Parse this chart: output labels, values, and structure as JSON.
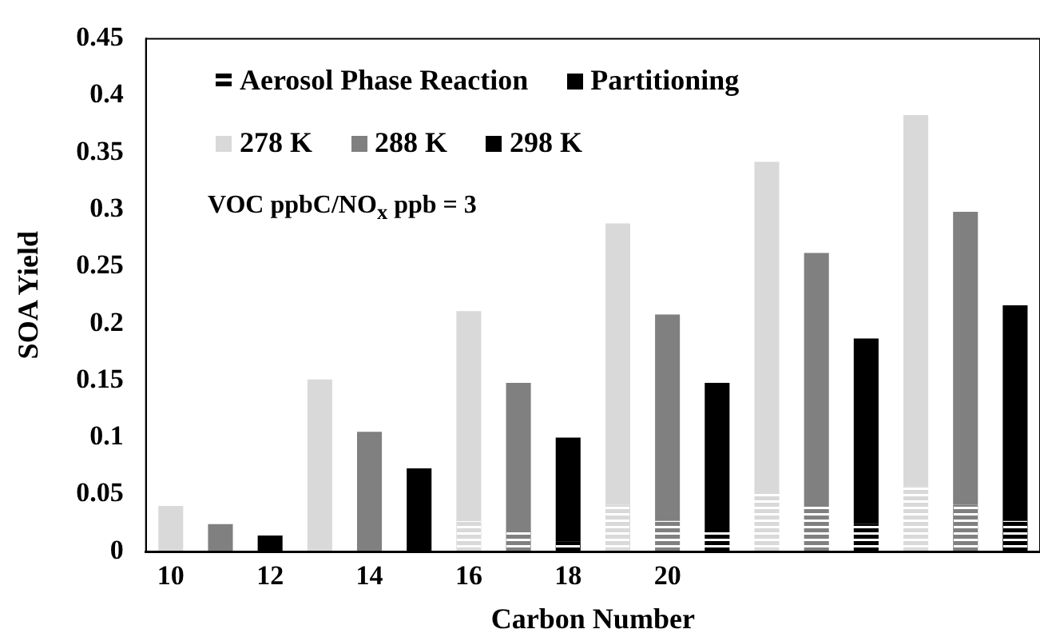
{
  "chart_data": {
    "type": "bar",
    "xlabel": "Carbon Number",
    "ylabel": "SOA Yield",
    "categories": [
      "10",
      null,
      "12",
      null,
      "14",
      null,
      "16",
      null,
      "18",
      null,
      "20",
      null,
      null,
      null,
      null,
      null,
      null,
      null
    ],
    "stacked": true,
    "legend": "top left",
    "ylim": [
      0,
      0.45
    ],
    "yticks": [
      0,
      0.05,
      0.1,
      0.15,
      0.2,
      0.25,
      0.3,
      0.35,
      0.4,
      0.45
    ],
    "annotations": [
      "VOC ppbC/NO$_{x}$ ppb = 3",
      "Aerosol Phase Reaction",
      "Partitioning"
    ],
    "series": [
      {
        "color": "#d9d9d9",
        "values": [
          0,
          null,
          null,
          0,
          null,
          null,
          0.026,
          null,
          null,
          0.041,
          null,
          null,
          0.05,
          null,
          null,
          0.057,
          null,
          null
        ]
      },
      {
        "color": "#808080",
        "values": [
          null,
          0,
          null,
          null,
          0,
          null,
          null,
          0.019,
          null,
          null,
          0.027,
          null,
          null,
          0.04,
          null,
          null,
          0.041,
          null
        ]
      },
      {
        "color": "#000000",
        "values": [
          null,
          null,
          0,
          null,
          null,
          0,
          null,
          null,
          0.009,
          null,
          null,
          0.019,
          null,
          null,
          0.024,
          null,
          null,
          0.027
        ]
      },
      {
        "name": "278 K",
        "color": "#d9d9d9",
        "values": [
          0.04,
          null,
          null,
          0.151,
          null,
          null,
          0.185,
          null,
          null,
          0.247,
          null,
          null,
          0.292,
          null,
          null,
          0.326,
          null,
          null
        ]
      },
      {
        "name": "288 K",
        "color": "#808080",
        "values": [
          null,
          0.024,
          null,
          null,
          0.105,
          null,
          null,
          0.129,
          null,
          null,
          0.181,
          null,
          null,
          0.222,
          null,
          null,
          0.257,
          null
        ]
      },
      {
        "name": "298 K",
        "color": "#000000",
        "values": [
          null,
          null,
          0.014,
          null,
          null,
          0.073,
          null,
          null,
          0.091,
          null,
          null,
          0.129,
          null,
          null,
          0.163,
          null,
          null,
          0.189
        ]
      }
    ]
  }
}
